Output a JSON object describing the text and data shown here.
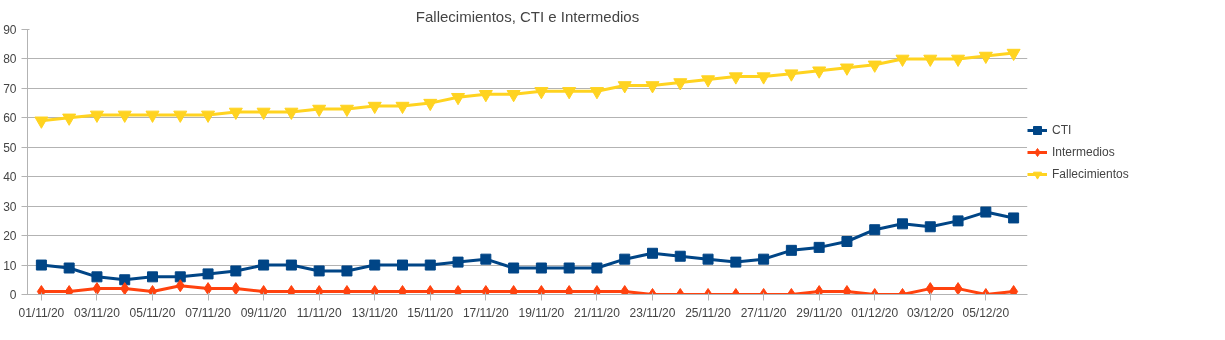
{
  "chart_data": {
    "type": "line",
    "title": "Fallecimientos, CTI e Intermedios",
    "categories": [
      "01/11/20",
      null,
      "03/11/20",
      null,
      "05/11/20",
      null,
      "07/11/20",
      null,
      "09/11/20",
      null,
      "11/11/20",
      null,
      "13/11/20",
      null,
      "15/11/20",
      null,
      "17/11/20",
      null,
      "19/11/20",
      null,
      "21/11/20",
      null,
      "23/11/20",
      null,
      "25/11/20",
      null,
      "27/11/20",
      null,
      "29/11/20",
      null,
      "01/12/20",
      null,
      "03/12/20",
      null,
      "05/12/20",
      null
    ],
    "series": [
      {
        "name": "CTI",
        "color": "#004586",
        "marker": "square",
        "values": [
          10,
          9,
          6,
          5,
          6,
          6,
          7,
          8,
          10,
          10,
          8,
          8,
          10,
          10,
          10,
          11,
          12,
          9,
          9,
          9,
          9,
          12,
          14,
          13,
          12,
          11,
          12,
          15,
          16,
          18,
          22,
          24,
          23,
          25,
          28,
          26
        ]
      },
      {
        "name": "Intermedios",
        "color": "#ff420e",
        "marker": "diamond",
        "values": [
          1,
          1,
          2,
          2,
          1,
          3,
          2,
          2,
          1,
          1,
          1,
          1,
          1,
          1,
          1,
          1,
          1,
          1,
          1,
          1,
          1,
          1,
          0,
          0,
          0,
          0,
          0,
          0,
          1,
          1,
          0,
          0,
          2,
          2,
          0,
          1
        ]
      },
      {
        "name": "Fallecimientos",
        "color": "#ffd320",
        "marker": "triangle",
        "values": [
          59,
          60,
          61,
          61,
          61,
          61,
          61,
          62,
          62,
          62,
          63,
          63,
          64,
          64,
          65,
          67,
          68,
          68,
          69,
          69,
          69,
          71,
          71,
          72,
          73,
          74,
          74,
          75,
          76,
          77,
          78,
          80,
          80,
          80,
          81,
          82
        ]
      }
    ],
    "ylim": [
      0,
      90
    ],
    "yticks": [
      0,
      10,
      20,
      30,
      40,
      50,
      60,
      70,
      80,
      90
    ],
    "grid": "y",
    "legend": "right"
  }
}
